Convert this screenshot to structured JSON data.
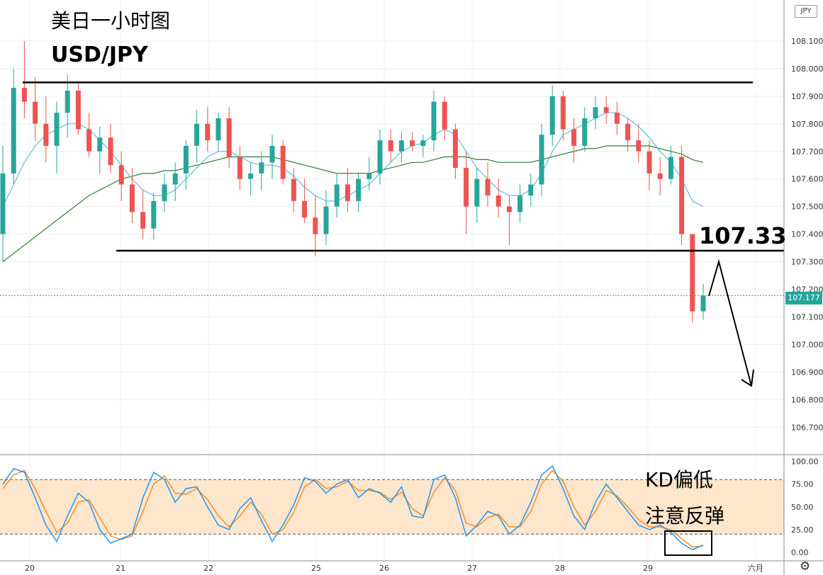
{
  "annotations": {
    "title": "美日一小时图",
    "symbol": "USD/JPY",
    "key_level": "107.33",
    "kd_line1": "KD偏低",
    "kd_line2": "注意反弹"
  },
  "price_scale": {
    "currency": "JPY",
    "current_price": "107.177",
    "tick_labels": [
      "106.700",
      "106.800",
      "106.900",
      "107.000",
      "107.100",
      "107.200",
      "107.300",
      "107.400",
      "107.500",
      "107.600",
      "107.700",
      "107.800",
      "107.900",
      "108.000",
      "108.100"
    ]
  },
  "kd_scale": {
    "tick_labels": [
      "0.00",
      "25.00",
      "50.00",
      "75.00",
      "100.00"
    ]
  },
  "time_axis": {
    "labels": [
      "20",
      "21",
      "22",
      "25",
      "26",
      "27",
      "28",
      "29",
      "六月"
    ]
  },
  "colors": {
    "up": "#26a69a",
    "down": "#ef5350",
    "ma_fast": "#5bc0de",
    "ma_slow": "#2e7d32",
    "k_line": "#2196f3",
    "d_line": "#ff8c26",
    "kd_band": "#fde6cc"
  },
  "icons": {
    "settings": "gear-icon"
  },
  "chart_data": [
    {
      "type": "candlestick",
      "title": "美日一小时图",
      "symbol": "USD/JPY",
      "ylim": [
        106.6,
        108.2
      ],
      "time_labels": [
        "20",
        "21",
        "22",
        "25",
        "26",
        "27",
        "28",
        "29",
        "六月"
      ],
      "resistance": 107.95,
      "support": 107.34,
      "key_level": 107.33,
      "current_price": 107.177,
      "projection": [
        "107.30",
        "106.85"
      ],
      "candles": [
        [
          107.4,
          107.72,
          107.3,
          107.62
        ],
        [
          107.62,
          108.0,
          107.58,
          107.93
        ],
        [
          107.93,
          108.1,
          107.82,
          107.88
        ],
        [
          107.88,
          107.97,
          107.74,
          107.8
        ],
        [
          107.8,
          107.9,
          107.66,
          107.72
        ],
        [
          107.72,
          107.88,
          107.62,
          107.84
        ],
        [
          107.84,
          107.98,
          107.75,
          107.92
        ],
        [
          107.92,
          107.95,
          107.76,
          107.78
        ],
        [
          107.78,
          107.84,
          107.68,
          107.7
        ],
        [
          107.7,
          107.79,
          107.62,
          107.75
        ],
        [
          107.75,
          107.8,
          107.62,
          107.65
        ],
        [
          107.65,
          107.7,
          107.52,
          107.58
        ],
        [
          107.58,
          107.64,
          107.44,
          107.48
        ],
        [
          107.48,
          107.56,
          107.38,
          107.42
        ],
        [
          107.42,
          107.55,
          107.38,
          107.52
        ],
        [
          107.52,
          107.62,
          107.48,
          107.58
        ],
        [
          107.58,
          107.66,
          107.52,
          107.62
        ],
        [
          107.62,
          107.74,
          107.56,
          107.72
        ],
        [
          107.72,
          107.85,
          107.66,
          107.8
        ],
        [
          107.8,
          107.86,
          107.7,
          107.74
        ],
        [
          107.74,
          107.84,
          107.7,
          107.82
        ],
        [
          107.82,
          107.86,
          107.64,
          107.68
        ],
        [
          107.68,
          107.72,
          107.56,
          107.6
        ],
        [
          107.6,
          107.66,
          107.54,
          107.62
        ],
        [
          107.62,
          107.7,
          107.56,
          107.66
        ],
        [
          107.66,
          107.76,
          107.6,
          107.72
        ],
        [
          107.72,
          107.74,
          107.58,
          107.6
        ],
        [
          107.6,
          107.64,
          107.48,
          107.52
        ],
        [
          107.52,
          107.6,
          107.44,
          107.46
        ],
        [
          107.46,
          107.54,
          107.32,
          107.4
        ],
        [
          107.4,
          107.56,
          107.36,
          107.5
        ],
        [
          107.5,
          107.62,
          107.46,
          107.58
        ],
        [
          107.58,
          107.64,
          107.48,
          107.52
        ],
        [
          107.52,
          107.62,
          107.48,
          107.6
        ],
        [
          107.6,
          107.68,
          107.56,
          107.62
        ],
        [
          107.62,
          107.78,
          107.58,
          107.74
        ],
        [
          107.74,
          107.78,
          107.66,
          107.7
        ],
        [
          107.7,
          107.77,
          107.66,
          107.74
        ],
        [
          107.74,
          107.77,
          107.7,
          107.72
        ],
        [
          107.72,
          107.76,
          107.68,
          107.74
        ],
        [
          107.74,
          107.92,
          107.7,
          107.88
        ],
        [
          107.88,
          107.9,
          107.74,
          107.78
        ],
        [
          107.78,
          107.8,
          107.6,
          107.64
        ],
        [
          107.64,
          107.7,
          107.4,
          107.5
        ],
        [
          107.5,
          107.64,
          107.44,
          107.6
        ],
        [
          107.6,
          107.66,
          107.5,
          107.54
        ],
        [
          107.54,
          107.6,
          107.46,
          107.5
        ],
        [
          107.5,
          107.54,
          107.36,
          107.48
        ],
        [
          107.48,
          107.58,
          107.44,
          107.54
        ],
        [
          107.54,
          107.62,
          107.5,
          107.58
        ],
        [
          107.58,
          107.8,
          107.54,
          107.76
        ],
        [
          107.76,
          107.94,
          107.72,
          107.9
        ],
        [
          107.9,
          107.92,
          107.74,
          107.78
        ],
        [
          107.78,
          107.82,
          107.66,
          107.72
        ],
        [
          107.72,
          107.86,
          107.7,
          107.82
        ],
        [
          107.82,
          107.9,
          107.78,
          107.86
        ],
        [
          107.86,
          107.9,
          107.8,
          107.84
        ],
        [
          107.84,
          107.88,
          107.76,
          107.8
        ],
        [
          107.8,
          107.82,
          107.7,
          107.74
        ],
        [
          107.74,
          107.8,
          107.66,
          107.7
        ],
        [
          107.7,
          107.74,
          107.56,
          107.62
        ],
        [
          107.62,
          107.68,
          107.54,
          107.6
        ],
        [
          107.6,
          107.72,
          107.58,
          107.68
        ],
        [
          107.68,
          107.72,
          107.36,
          107.4
        ],
        [
          107.4,
          107.4,
          107.08,
          107.12
        ],
        [
          107.12,
          107.22,
          107.09,
          107.177
        ]
      ],
      "ma_fast": [
        107.5,
        107.58,
        107.66,
        107.72,
        107.76,
        107.78,
        107.8,
        107.8,
        107.78,
        107.74,
        107.7,
        107.65,
        107.6,
        107.56,
        107.54,
        107.54,
        107.56,
        107.6,
        107.64,
        107.68,
        107.7,
        107.7,
        107.68,
        107.66,
        107.65,
        107.65,
        107.64,
        107.61,
        107.57,
        107.54,
        107.52,
        107.52,
        107.54,
        107.56,
        107.58,
        107.62,
        107.66,
        107.7,
        107.72,
        107.73,
        107.76,
        107.78,
        107.76,
        107.7,
        107.64,
        107.6,
        107.56,
        107.54,
        107.54,
        107.56,
        107.62,
        107.7,
        107.76,
        107.78,
        107.8,
        107.82,
        107.84,
        107.84,
        107.82,
        107.79,
        107.75,
        107.7,
        107.66,
        107.6,
        107.52,
        107.5
      ],
      "ma_slow": [
        107.3,
        107.33,
        107.36,
        107.39,
        107.42,
        107.45,
        107.48,
        107.51,
        107.54,
        107.56,
        107.58,
        107.6,
        107.61,
        107.62,
        107.62,
        107.63,
        107.63,
        107.64,
        107.65,
        107.66,
        107.67,
        107.68,
        107.68,
        107.68,
        107.68,
        107.68,
        107.67,
        107.66,
        107.65,
        107.64,
        107.63,
        107.62,
        107.62,
        107.62,
        107.62,
        107.63,
        107.64,
        107.65,
        107.66,
        107.66,
        107.67,
        107.68,
        107.68,
        107.68,
        107.67,
        107.67,
        107.66,
        107.66,
        107.66,
        107.66,
        107.67,
        107.68,
        107.69,
        107.7,
        107.71,
        107.71,
        107.72,
        107.72,
        107.72,
        107.72,
        107.72,
        107.71,
        107.7,
        107.69,
        107.67,
        107.66
      ]
    },
    {
      "type": "line",
      "title": "KD",
      "ylim": [
        0,
        100
      ],
      "bands": [
        20,
        80
      ],
      "series": [
        {
          "name": "K",
          "values": [
            75,
            92,
            88,
            60,
            30,
            12,
            40,
            65,
            55,
            25,
            10,
            15,
            20,
            60,
            88,
            80,
            55,
            70,
            72,
            50,
            30,
            25,
            48,
            60,
            35,
            12,
            30,
            52,
            82,
            78,
            65,
            75,
            80,
            60,
            70,
            65,
            55,
            72,
            40,
            38,
            80,
            85,
            60,
            18,
            30,
            45,
            40,
            20,
            30,
            55,
            85,
            95,
            70,
            40,
            25,
            55,
            75,
            60,
            45,
            30,
            25,
            30,
            22,
            10,
            3,
            8
          ]
        },
        {
          "name": "D",
          "values": [
            70,
            85,
            90,
            70,
            45,
            22,
            32,
            55,
            58,
            38,
            18,
            14,
            18,
            45,
            75,
            84,
            65,
            64,
            70,
            58,
            40,
            28,
            40,
            55,
            42,
            20,
            25,
            44,
            72,
            80,
            70,
            72,
            78,
            68,
            68,
            66,
            58,
            66,
            48,
            40,
            66,
            82,
            68,
            32,
            28,
            38,
            42,
            28,
            28,
            45,
            75,
            90,
            78,
            50,
            30,
            45,
            68,
            62,
            50,
            36,
            28,
            28,
            25,
            15,
            6,
            7
          ]
        }
      ]
    }
  ]
}
